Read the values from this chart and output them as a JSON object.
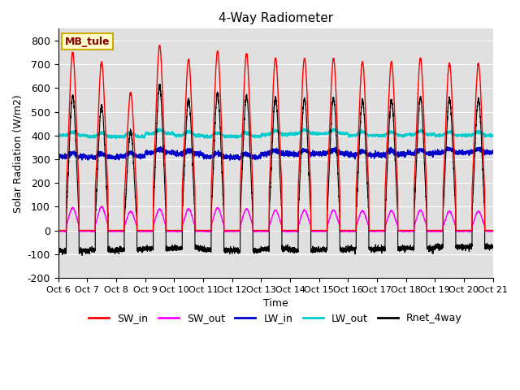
{
  "title": "4-Way Radiometer",
  "xlabel": "Time",
  "ylabel": "Solar Radiation (W/m2)",
  "label_text": "MB_tule",
  "ylim": [
    -200,
    850
  ],
  "yticks": [
    -200,
    -100,
    0,
    100,
    200,
    300,
    400,
    500,
    600,
    700,
    800
  ],
  "x_tick_labels": [
    "Oct 6",
    "Oct 7",
    "Oct 8",
    "Oct 9",
    "Oct 10",
    "Oct 11",
    "Oct 12",
    "Oct 13",
    "Oct 14",
    "Oct 15",
    "Oct 16",
    "Oct 17",
    "Oct 18",
    "Oct 19",
    "Oct 20",
    "Oct 21"
  ],
  "colors": {
    "SW_in": "#ff0000",
    "SW_out": "#ff00ff",
    "LW_in": "#0000cc",
    "LW_out": "#00cccc",
    "Rnet_4way": "#000000"
  },
  "bg_color": "#e0e0e0",
  "n_days": 15,
  "SW_in_peak": [
    750,
    710,
    580,
    780,
    720,
    755,
    745,
    725,
    725,
    725,
    710,
    710,
    725,
    705,
    703
  ],
  "SW_out_peak": [
    95,
    100,
    80,
    90,
    90,
    95,
    90,
    85,
    85,
    85,
    82,
    82,
    85,
    80,
    80
  ],
  "LW_in_base": [
    310,
    308,
    312,
    328,
    322,
    310,
    308,
    322,
    322,
    324,
    318,
    320,
    324,
    328,
    328
  ],
  "LW_out_base": [
    400,
    395,
    395,
    408,
    400,
    396,
    396,
    404,
    408,
    408,
    400,
    400,
    404,
    400,
    400
  ],
  "Rnet_night": -90,
  "figsize": [
    6.4,
    4.8
  ],
  "dpi": 100
}
